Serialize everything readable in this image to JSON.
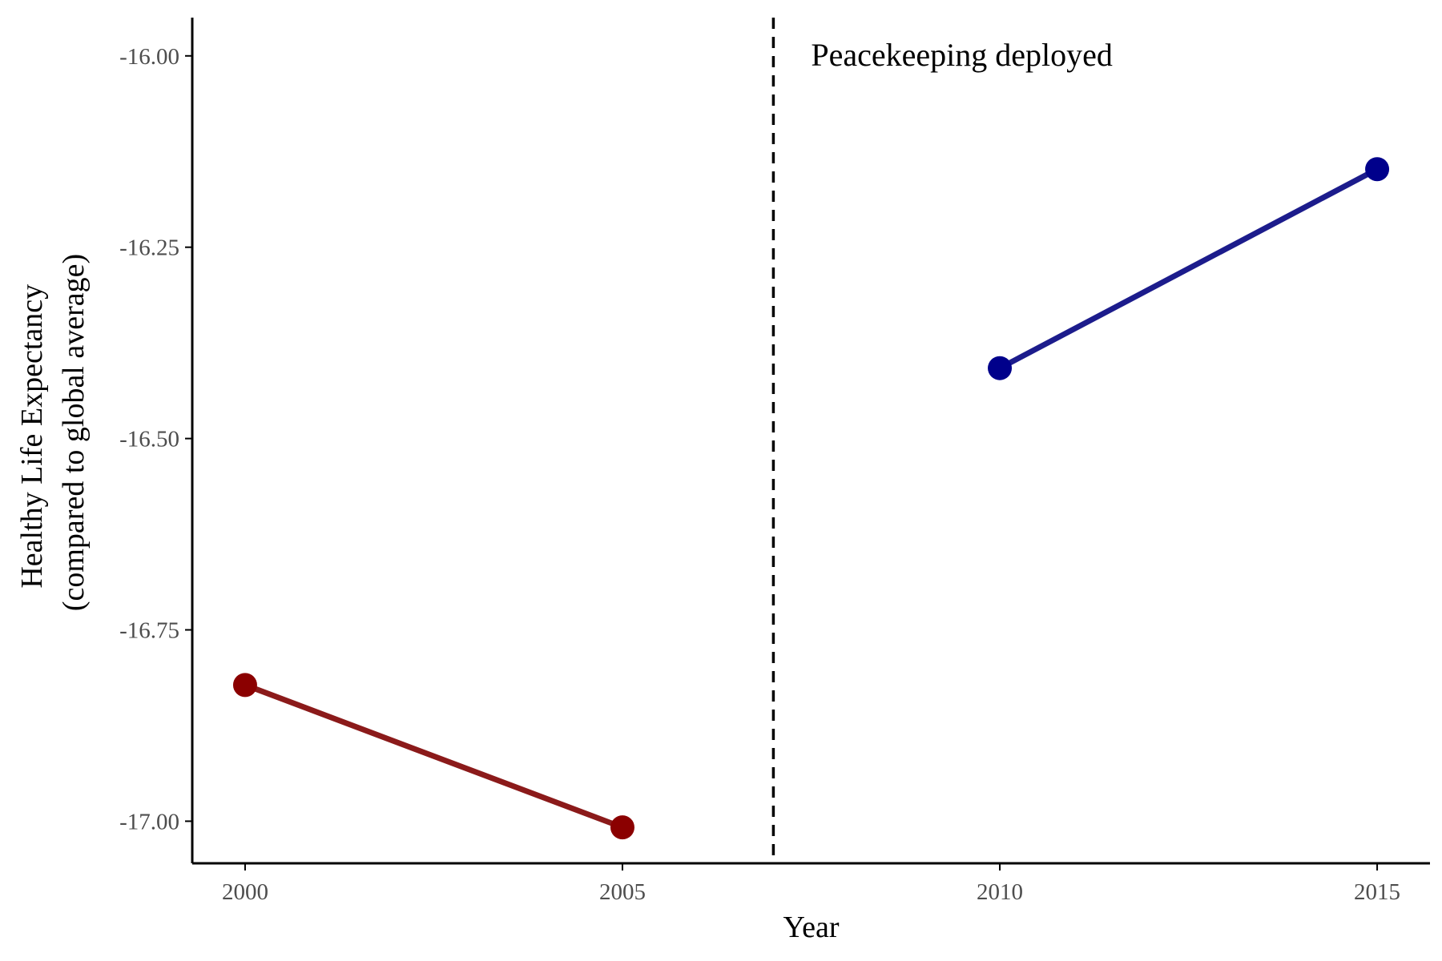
{
  "chart_data": {
    "type": "line",
    "title": "",
    "xlabel": "Year",
    "ylabel_lines": [
      "Healthy Life Expectancy",
      "(compared to global average)"
    ],
    "x_ticks": [
      2000,
      2005,
      2010,
      2015
    ],
    "x_tick_labels": [
      "2000",
      "2005",
      "2010",
      "2015"
    ],
    "y_ticks": [
      -16.0,
      -16.25,
      -16.5,
      -16.75,
      -17.0
    ],
    "y_tick_labels": [
      "-16.00",
      "-16.25",
      "-16.50",
      "-16.75",
      "-17.00"
    ],
    "xlim": [
      1999.3,
      2015.7
    ],
    "ylim": [
      -17.055,
      -15.95
    ],
    "grid": false,
    "legend": "none",
    "series": [
      {
        "x": [
          2000,
          2005
        ],
        "y": [
          -16.822,
          -17.008
        ],
        "color": "#8b1a1a",
        "point_color": "#8b0000"
      },
      {
        "x": [
          2010,
          2015
        ],
        "y": [
          -16.408,
          -16.148
        ],
        "color": "#1c1c8c",
        "point_color": "#00008b"
      }
    ],
    "annotations": [
      {
        "type": "vline",
        "x": 2007,
        "style": "dashed",
        "color": "#000000",
        "label": "Peacekeeping deployed"
      }
    ]
  }
}
